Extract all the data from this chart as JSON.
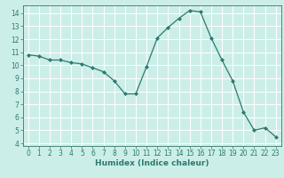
{
  "x": [
    0,
    1,
    2,
    3,
    4,
    5,
    6,
    7,
    8,
    9,
    10,
    11,
    12,
    13,
    14,
    15,
    16,
    17,
    18,
    19,
    20,
    21,
    22,
    23
  ],
  "y": [
    10.8,
    10.7,
    10.4,
    10.4,
    10.2,
    10.1,
    9.8,
    9.5,
    8.8,
    7.8,
    7.8,
    9.9,
    12.1,
    12.9,
    13.6,
    14.2,
    14.1,
    12.1,
    10.4,
    8.8,
    6.4,
    5.0,
    5.2,
    4.5
  ],
  "line_color": "#2d7a6e",
  "marker": "D",
  "marker_size": 2.0,
  "bg_color": "#cceee8",
  "grid_color": "#ffffff",
  "xlabel": "Humidex (Indice chaleur)",
  "xlim": [
    -0.5,
    23.5
  ],
  "ylim": [
    3.8,
    14.6
  ],
  "yticks": [
    4,
    5,
    6,
    7,
    8,
    9,
    10,
    11,
    12,
    13,
    14
  ],
  "xticks": [
    0,
    1,
    2,
    3,
    4,
    5,
    6,
    7,
    8,
    9,
    10,
    11,
    12,
    13,
    14,
    15,
    16,
    17,
    18,
    19,
    20,
    21,
    22,
    23
  ],
  "tick_fontsize": 5.5,
  "xlabel_fontsize": 6.5,
  "linewidth": 0.9
}
